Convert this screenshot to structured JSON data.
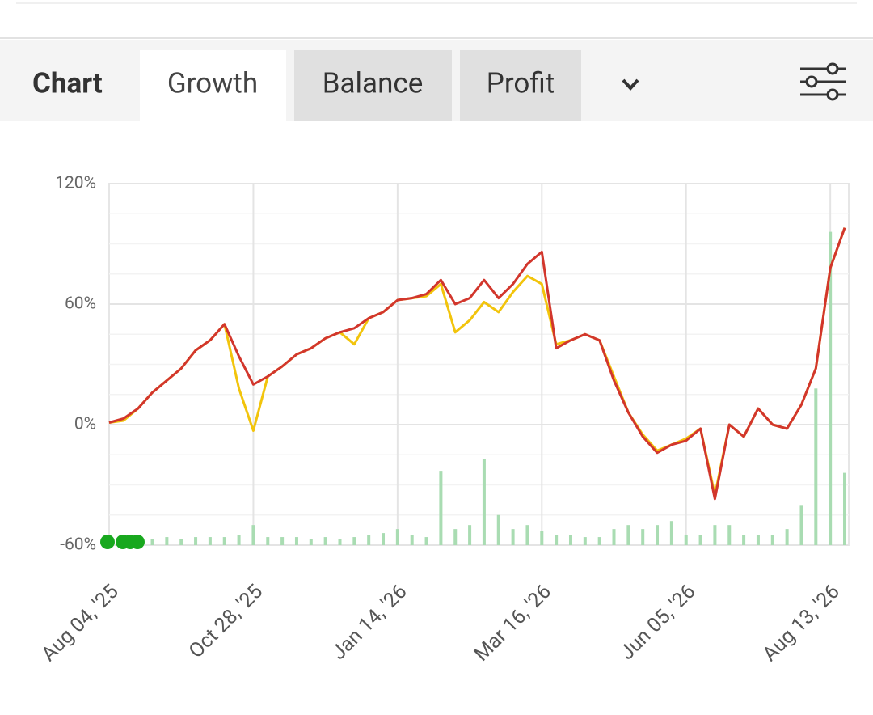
{
  "tabs": {
    "heading": "Chart",
    "items": [
      "Growth",
      "Balance",
      "Profit"
    ]
  },
  "chart_data": {
    "type": "line",
    "categories": [
      "Aug 04, '25",
      null,
      null,
      null,
      null,
      null,
      null,
      null,
      null,
      null,
      "Oct 28, '25",
      null,
      null,
      null,
      null,
      null,
      null,
      null,
      null,
      null,
      "Jan 14, '26",
      null,
      null,
      null,
      null,
      null,
      null,
      null,
      null,
      null,
      "Mar 16, '26",
      null,
      null,
      null,
      null,
      null,
      null,
      null,
      null,
      null,
      "Jun 05, '26",
      null,
      null,
      null,
      null,
      null,
      null,
      null,
      null,
      null,
      "Aug 13, '26",
      null
    ],
    "series": [
      {
        "type": "bar",
        "color": "#a9dcb2",
        "values": [
          -57,
          -57,
          -57,
          -57,
          -56,
          -57,
          -56,
          -56,
          -56,
          -55,
          -50,
          -56,
          -56,
          -56,
          -57,
          -56,
          -57,
          -56,
          -55,
          -54,
          -52,
          -55,
          -56,
          -23,
          -52,
          -50,
          -17,
          -45,
          -52,
          -50,
          -53,
          -55,
          -55,
          -56,
          -56,
          -52,
          -50,
          -52,
          -50,
          -48,
          -55,
          -55,
          -50,
          -50,
          -55,
          -55,
          -55,
          -52,
          -40,
          18,
          96,
          -24
        ]
      },
      {
        "type": "line",
        "color": "#f2c40c",
        "values": [
          1,
          2,
          8,
          16,
          22,
          28,
          37,
          42,
          50,
          18,
          -3,
          24,
          29,
          35,
          38,
          43,
          46,
          40,
          53,
          56,
          62,
          63,
          64,
          70,
          46,
          52,
          61,
          56,
          66,
          74,
          70,
          40,
          42,
          45,
          42,
          24,
          6,
          -5,
          -13,
          -10,
          -7,
          -2,
          -35,
          0,
          -6,
          8,
          0,
          -2,
          10,
          28,
          78,
          98
        ]
      },
      {
        "type": "line",
        "color": "#d2362c",
        "values": [
          1,
          3,
          8,
          16,
          22,
          28,
          37,
          42,
          50,
          34,
          20,
          24,
          29,
          35,
          38,
          43,
          46,
          48,
          53,
          56,
          62,
          63,
          65,
          72,
          60,
          63,
          72,
          63,
          70,
          80,
          86,
          38,
          42,
          45,
          42,
          22,
          6,
          -6,
          -14,
          -10,
          -8,
          -2,
          -37,
          0,
          -6,
          8,
          0,
          -2,
          10,
          28,
          78,
          98
        ]
      }
    ],
    "ylim": [
      -60,
      120
    ],
    "yticks": [
      {
        "value": -60,
        "label": "-60%"
      },
      {
        "value": 0,
        "label": "0%"
      },
      {
        "value": 60,
        "label": "60%"
      },
      {
        "value": 120,
        "label": "120%"
      }
    ],
    "grid": true
  }
}
